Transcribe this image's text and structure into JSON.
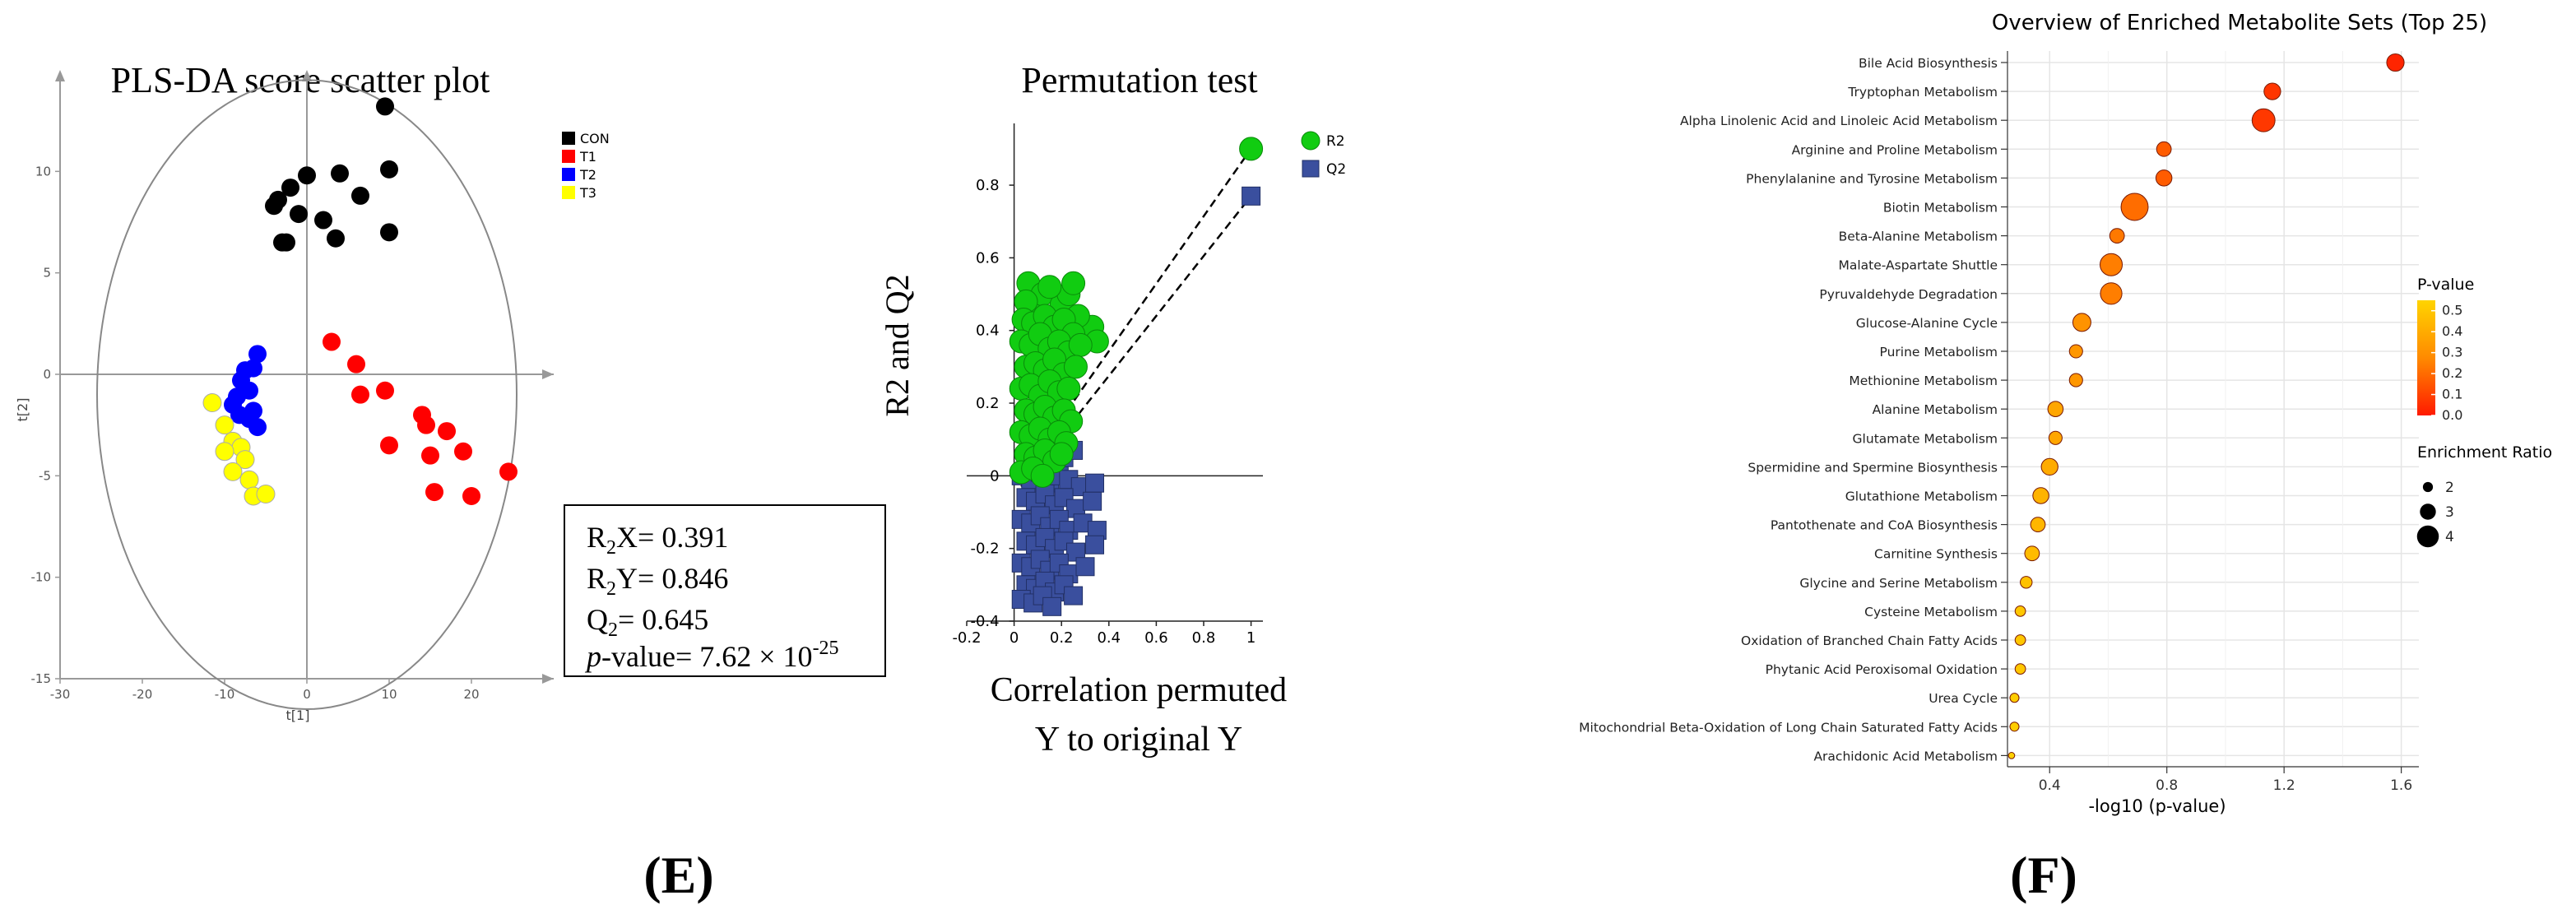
{
  "panel_labels": {
    "e": "(E)",
    "f": "(F)"
  },
  "chart_data": [
    {
      "type": "scatter",
      "title": "PLS-DA score scatter plot",
      "xlabel": "t[1]",
      "ylabel": "t[2]",
      "xlim": [
        -30,
        30
      ],
      "ylim": [
        -15,
        15
      ],
      "xticks": [
        -30,
        -20,
        -10,
        0,
        10,
        20
      ],
      "yticks": [
        -15,
        -10,
        -5,
        0,
        5,
        10
      ],
      "ellipse": {
        "cx": 0,
        "cy": -1,
        "rx": 25.5,
        "ry": 15.5
      },
      "legend": [
        "CON",
        "T1",
        "T2",
        "T3"
      ],
      "series": [
        {
          "name": "CON",
          "color": "#000000",
          "points": [
            [
              9.5,
              13.2
            ],
            [
              10,
              10.1
            ],
            [
              4,
              9.9
            ],
            [
              6.5,
              8.8
            ],
            [
              0,
              9.8
            ],
            [
              -2,
              9.2
            ],
            [
              -3.5,
              8.6
            ],
            [
              -4,
              8.3
            ],
            [
              -1,
              7.9
            ],
            [
              2,
              7.6
            ],
            [
              3.5,
              6.7
            ],
            [
              10,
              7
            ],
            [
              -3,
              6.5
            ],
            [
              -2.5,
              6.5
            ]
          ]
        },
        {
          "name": "T1",
          "color": "#ff0000",
          "points": [
            [
              3,
              1.6
            ],
            [
              6,
              0.5
            ],
            [
              6.5,
              -1
            ],
            [
              9.5,
              -0.8
            ],
            [
              14,
              -2
            ],
            [
              14.5,
              -2.5
            ],
            [
              17,
              -2.8
            ],
            [
              24.5,
              -4.8
            ],
            [
              15,
              -4
            ],
            [
              19,
              -3.8
            ],
            [
              10,
              -3.5
            ],
            [
              15.5,
              -5.8
            ],
            [
              20,
              -6
            ]
          ]
        },
        {
          "name": "T2",
          "color": "#0000ff",
          "points": [
            [
              -6,
              1
            ],
            [
              -6.5,
              0.3
            ],
            [
              -7.5,
              0.2
            ],
            [
              -8,
              -0.3
            ],
            [
              -7,
              -0.8
            ],
            [
              -8.5,
              -1.1
            ],
            [
              -9,
              -1.5
            ],
            [
              -6.5,
              -1.8
            ],
            [
              -8.2,
              -2
            ],
            [
              -7,
              -2.2
            ],
            [
              -6,
              -2.6
            ]
          ]
        },
        {
          "name": "T3",
          "color": "#ffff00",
          "points": [
            [
              -11.5,
              -1.4
            ],
            [
              -10,
              -2.5
            ],
            [
              -9,
              -3.3
            ],
            [
              -8,
              -3.6
            ],
            [
              -7.5,
              -4.2
            ],
            [
              -10,
              -3.8
            ],
            [
              -9,
              -4.8
            ],
            [
              -7,
              -5.2
            ],
            [
              -6.5,
              -6
            ],
            [
              -5,
              -5.9
            ]
          ]
        }
      ],
      "stats": {
        "r2x": "R2X= 0.391",
        "r2y": "R2Y= 0.846",
        "q2": "Q2= 0.645",
        "pvalue_prefix": "p-value= 7.62 × 10",
        "pvalue_exp": "-25"
      }
    },
    {
      "type": "scatter",
      "title": "Permutation test",
      "ylabel": "R2 and Q2",
      "xlabel_line1": "Correlation permuted",
      "xlabel_line2": "Y to original Y",
      "xlim": [
        -0.2,
        1.05
      ],
      "ylim": [
        -0.4,
        0.97
      ],
      "xticks": [
        -0.2,
        0,
        0.2,
        0.4,
        0.6,
        0.8,
        1
      ],
      "yticks": [
        -0.4,
        -0.2,
        0,
        0.2,
        0.4,
        0.6,
        0.8
      ],
      "legend": [
        "R2",
        "Q2"
      ],
      "series": [
        {
          "name": "R2",
          "color": "#11cc11",
          "marker": "circle",
          "points": [
            [
              0.06,
              0.53
            ],
            [
              0.09,
              0.47
            ],
            [
              0.12,
              0.5
            ],
            [
              0.2,
              0.47
            ],
            [
              0.23,
              0.5
            ],
            [
              0.25,
              0.53
            ],
            [
              0.05,
              0.48
            ],
            [
              0.15,
              0.52
            ],
            [
              0.33,
              0.41
            ],
            [
              0.35,
              0.37
            ],
            [
              0.27,
              0.44
            ],
            [
              0.04,
              0.43
            ],
            [
              0.08,
              0.42
            ],
            [
              0.13,
              0.44
            ],
            [
              0.17,
              0.41
            ],
            [
              0.21,
              0.43
            ],
            [
              0.25,
              0.39
            ],
            [
              0.03,
              0.37
            ],
            [
              0.07,
              0.36
            ],
            [
              0.11,
              0.39
            ],
            [
              0.15,
              0.35
            ],
            [
              0.19,
              0.37
            ],
            [
              0.23,
              0.34
            ],
            [
              0.28,
              0.36
            ],
            [
              0.05,
              0.3
            ],
            [
              0.09,
              0.31
            ],
            [
              0.13,
              0.29
            ],
            [
              0.17,
              0.32
            ],
            [
              0.21,
              0.28
            ],
            [
              0.26,
              0.3
            ],
            [
              0.03,
              0.24
            ],
            [
              0.07,
              0.25
            ],
            [
              0.11,
              0.22
            ],
            [
              0.15,
              0.26
            ],
            [
              0.19,
              0.23
            ],
            [
              0.23,
              0.24
            ],
            [
              0.05,
              0.18
            ],
            [
              0.09,
              0.17
            ],
            [
              0.13,
              0.19
            ],
            [
              0.17,
              0.16
            ],
            [
              0.21,
              0.18
            ],
            [
              0.24,
              0.15
            ],
            [
              0.03,
              0.12
            ],
            [
              0.07,
              0.11
            ],
            [
              0.11,
              0.13
            ],
            [
              0.15,
              0.1
            ],
            [
              0.19,
              0.12
            ],
            [
              0.22,
              0.09
            ],
            [
              0.05,
              0.06
            ],
            [
              0.09,
              0.05
            ],
            [
              0.13,
              0.07
            ],
            [
              0.17,
              0.04
            ],
            [
              0.2,
              0.06
            ],
            [
              0.03,
              0.01
            ],
            [
              0.08,
              0.02
            ],
            [
              0.12,
              0.0
            ],
            [
              1.0,
              0.9
            ]
          ]
        },
        {
          "name": "Q2",
          "color": "#3a4f9e",
          "marker": "square",
          "points": [
            [
              0.05,
              0.05
            ],
            [
              0.09,
              0.04
            ],
            [
              0.13,
              0.06
            ],
            [
              0.17,
              0.03
            ],
            [
              0.21,
              0.05
            ],
            [
              0.25,
              0.07
            ],
            [
              0.03,
              0.0
            ],
            [
              0.07,
              -0.01
            ],
            [
              0.11,
              0.01
            ],
            [
              0.15,
              -0.02
            ],
            [
              0.19,
              0.0
            ],
            [
              0.23,
              -0.01
            ],
            [
              0.28,
              -0.03
            ],
            [
              0.34,
              -0.02
            ],
            [
              0.05,
              -0.06
            ],
            [
              0.09,
              -0.07
            ],
            [
              0.13,
              -0.05
            ],
            [
              0.17,
              -0.08
            ],
            [
              0.21,
              -0.06
            ],
            [
              0.26,
              -0.09
            ],
            [
              0.33,
              -0.07
            ],
            [
              0.03,
              -0.12
            ],
            [
              0.07,
              -0.13
            ],
            [
              0.11,
              -0.11
            ],
            [
              0.15,
              -0.14
            ],
            [
              0.19,
              -0.12
            ],
            [
              0.23,
              -0.15
            ],
            [
              0.29,
              -0.13
            ],
            [
              0.35,
              -0.15
            ],
            [
              0.05,
              -0.18
            ],
            [
              0.09,
              -0.19
            ],
            [
              0.13,
              -0.17
            ],
            [
              0.17,
              -0.2
            ],
            [
              0.21,
              -0.18
            ],
            [
              0.26,
              -0.21
            ],
            [
              0.34,
              -0.19
            ],
            [
              0.03,
              -0.24
            ],
            [
              0.07,
              -0.25
            ],
            [
              0.11,
              -0.23
            ],
            [
              0.15,
              -0.26
            ],
            [
              0.19,
              -0.24
            ],
            [
              0.23,
              -0.27
            ],
            [
              0.3,
              -0.25
            ],
            [
              0.05,
              -0.3
            ],
            [
              0.09,
              -0.31
            ],
            [
              0.13,
              -0.29
            ],
            [
              0.17,
              -0.32
            ],
            [
              0.21,
              -0.3
            ],
            [
              0.25,
              -0.33
            ],
            [
              0.03,
              -0.34
            ],
            [
              0.08,
              -0.35
            ],
            [
              0.12,
              -0.33
            ],
            [
              0.16,
              -0.36
            ],
            [
              1.0,
              0.77
            ]
          ]
        }
      ],
      "regression_r2": [
        [
          0.03,
          0.0
        ],
        [
          1.0,
          0.9
        ]
      ],
      "regression_q2": [
        [
          0.03,
          -0.03
        ],
        [
          1.0,
          0.77
        ]
      ]
    },
    {
      "type": "scatter",
      "title": "Overview of Enriched Metabolite Sets (Top 25)",
      "xlabel": "-log10 (p-value)",
      "xlim": [
        0.2,
        1.66
      ],
      "xticks": [
        0.4,
        0.8,
        1.2,
        1.6
      ],
      "categories": [
        "Bile Acid Biosynthesis",
        "Tryptophan Metabolism",
        "Alpha Linolenic Acid and Linoleic Acid Metabolism",
        "Arginine and Proline Metabolism",
        "Phenylalanine and Tyrosine Metabolism",
        "Biotin Metabolism",
        "Beta-Alanine Metabolism",
        "Malate-Aspartate Shuttle",
        "Pyruvaldehyde Degradation",
        "Glucose-Alanine Cycle",
        "Purine Metabolism",
        "Methionine Metabolism",
        "Alanine Metabolism",
        "Glutamate Metabolism",
        "Spermidine and Spermine Biosynthesis",
        "Glutathione Metabolism",
        "Pantothenate and CoA Biosynthesis",
        "Carnitine Synthesis",
        "Glycine and Serine Metabolism",
        "Cysteine Metabolism",
        "Oxidation of Branched Chain Fatty Acids",
        "Phytanic Acid Peroxisomal Oxidation",
        "Urea Cycle",
        "Mitochondrial Beta-Oxidation of Long Chain Saturated Fatty Acids",
        "Arachidonic Acid Metabolism"
      ],
      "x": [
        1.58,
        1.16,
        1.13,
        0.79,
        0.79,
        0.69,
        0.63,
        0.61,
        0.61,
        0.51,
        0.49,
        0.49,
        0.42,
        0.42,
        0.4,
        0.37,
        0.36,
        0.34,
        0.32,
        0.3,
        0.3,
        0.3,
        0.28,
        0.28,
        0.27
      ],
      "pvalue": [
        0.026,
        0.069,
        0.074,
        0.162,
        0.162,
        0.204,
        0.234,
        0.245,
        0.245,
        0.309,
        0.324,
        0.324,
        0.38,
        0.38,
        0.398,
        0.427,
        0.437,
        0.457,
        0.479,
        0.501,
        0.501,
        0.501,
        0.525,
        0.525,
        0.537
      ],
      "enrichment_ratio": [
        2.8,
        2.7,
        3.6,
        2.4,
        2.6,
        4.2,
        2.4,
        3.5,
        3.4,
        2.9,
        2.2,
        2.2,
        2.5,
        2.2,
        2.7,
        2.6,
        2.4,
        2.4,
        2.0,
        1.8,
        1.8,
        1.8,
        1.6,
        1.6,
        1.2
      ],
      "color_legend": {
        "title": "P-value",
        "ticks": [
          "0.5",
          "0.4",
          "0.3",
          "0.2",
          "0.1",
          "0.0"
        ],
        "max": 0.55
      },
      "size_legend": {
        "title": "Enrichment Ratio",
        "values": [
          2,
          3,
          4
        ],
        "labels": [
          "2",
          "3",
          "4"
        ]
      },
      "colors": {
        "low": "#ff1a00",
        "mid": "#ff8a00",
        "high": "#ffd400"
      }
    }
  ]
}
